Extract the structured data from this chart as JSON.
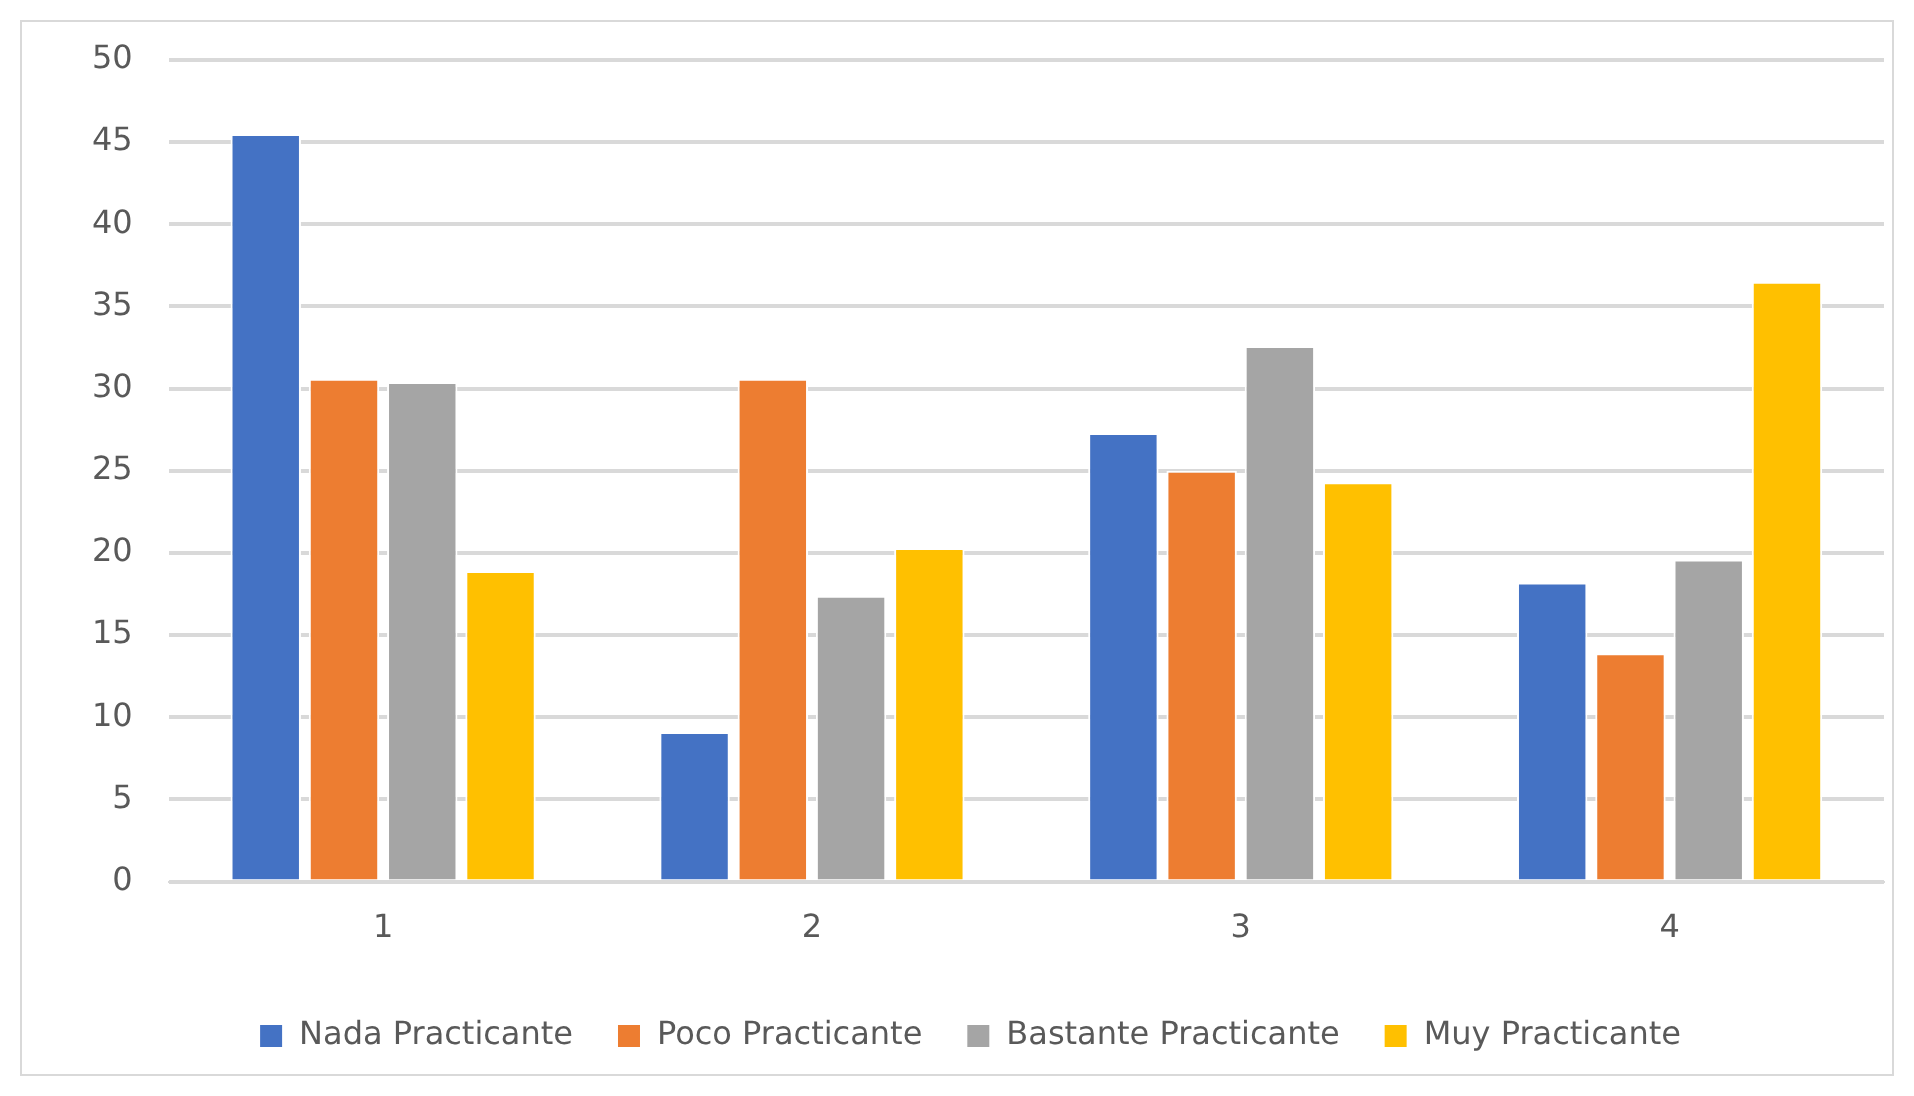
{
  "chart_data": {
    "type": "bar",
    "categories": [
      "1",
      "2",
      "3",
      "4"
    ],
    "series": [
      {
        "name": "Nada Practicante",
        "color": "#4472c4",
        "values": [
          45.5,
          9.1,
          27.3,
          18.2
        ]
      },
      {
        "name": "Poco Practicante",
        "color": "#ed7d31",
        "values": [
          30.6,
          30.6,
          25.0,
          13.9
        ]
      },
      {
        "name": "Bastante Practicante",
        "color": "#a5a5a5",
        "values": [
          30.4,
          17.4,
          32.6,
          19.6
        ]
      },
      {
        "name": "Muy Practicante",
        "color": "#ffc000",
        "values": [
          18.9,
          20.3,
          24.3,
          36.5
        ]
      }
    ],
    "ylim": [
      0,
      50
    ],
    "yticks": [
      0,
      5,
      10,
      15,
      20,
      25,
      30,
      35,
      40,
      45,
      50
    ],
    "grid": "y",
    "legend": "bottom"
  }
}
